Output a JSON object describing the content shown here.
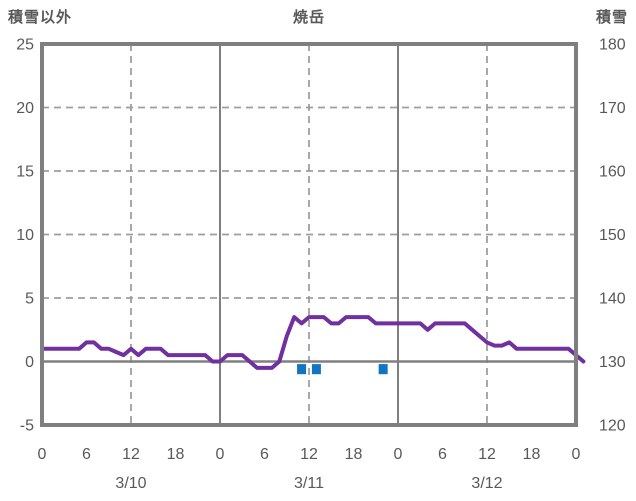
{
  "header": {
    "left_axis_title": "積雪以外",
    "chart_title": "焼岳",
    "right_axis_title": "積雪"
  },
  "colors": {
    "line": "#7030A0",
    "bar": "#1175C0",
    "frame": "#7F7F7F",
    "grid_dashed": "#9E9E9E",
    "zero_line": "#808080",
    "text": "#595959"
  },
  "chart_data": {
    "type": "line",
    "title": "焼岳",
    "legend": "none",
    "grid": "dashed horizontal at 5,10,15,20; dashed vertical at each noon; solid vertical at day boundaries; solid zero line",
    "x_axis": {
      "unit": "hour of day over 3 days",
      "range_hours": [
        0,
        72
      ],
      "tick_hours": [
        0,
        6,
        12,
        18,
        24,
        30,
        36,
        42,
        48,
        54,
        60,
        66,
        72
      ],
      "tick_labels": [
        "0",
        "6",
        "12",
        "18",
        "0",
        "6",
        "12",
        "18",
        "0",
        "6",
        "12",
        "18",
        "0"
      ],
      "date_labels": [
        {
          "text": "3/10",
          "hour": 12
        },
        {
          "text": "3/11",
          "hour": 36
        },
        {
          "text": "3/12",
          "hour": 60
        }
      ],
      "solid_gridline_hours": [
        24,
        48
      ],
      "dashed_gridline_hours": [
        12,
        36,
        60
      ]
    },
    "y_left": {
      "title": "積雪以外",
      "min": -5,
      "max": 25,
      "tick_values": [
        25,
        20,
        15,
        10,
        5,
        0,
        -5
      ],
      "tick_labels": [
        "25",
        "20",
        "15",
        "10",
        "5",
        "0",
        "-5"
      ],
      "dashed_gridline_values": [
        20,
        15,
        10,
        5
      ],
      "zero_line_value": 0
    },
    "y_right": {
      "title": "積雪",
      "min": 120,
      "max": 180,
      "tick_values": [
        180,
        170,
        160,
        150,
        140,
        130,
        120
      ],
      "tick_labels": [
        "180",
        "170",
        "160",
        "150",
        "140",
        "130",
        "120"
      ],
      "conversion": "right = 130 + 2 × left"
    },
    "series": [
      {
        "name": "snow-depth-line",
        "type": "line",
        "color_key": "line",
        "axis": "left",
        "start_hour": 0,
        "step_hours": 1,
        "values": [
          1,
          1,
          1,
          1,
          1,
          1,
          1.5,
          1.5,
          1,
          1,
          0.75,
          0.5,
          1,
          0.5,
          1,
          1,
          1,
          0.5,
          0.5,
          0.5,
          0.5,
          0.5,
          0.5,
          0,
          0,
          0.5,
          0.5,
          0.5,
          0,
          -0.5,
          -0.5,
          -0.5,
          0,
          2,
          3.5,
          3,
          3.5,
          3.5,
          3.5,
          3,
          3,
          3.5,
          3.5,
          3.5,
          3.5,
          3,
          3,
          3,
          3,
          3,
          3,
          3,
          2.5,
          3,
          3,
          3,
          3,
          3,
          2.5,
          2,
          1.5,
          1.25,
          1.25,
          1.5,
          1,
          1,
          1,
          1,
          1,
          1,
          1,
          1,
          0.5,
          0
        ]
      },
      {
        "name": "precip-bars",
        "type": "bar",
        "color_key": "bar",
        "axis": "left",
        "direction": "downward from zero line",
        "bars": [
          {
            "hour": 35,
            "value": 1
          },
          {
            "hour": 37,
            "value": 1
          },
          {
            "hour": 46,
            "value": 1
          }
        ]
      }
    ]
  }
}
